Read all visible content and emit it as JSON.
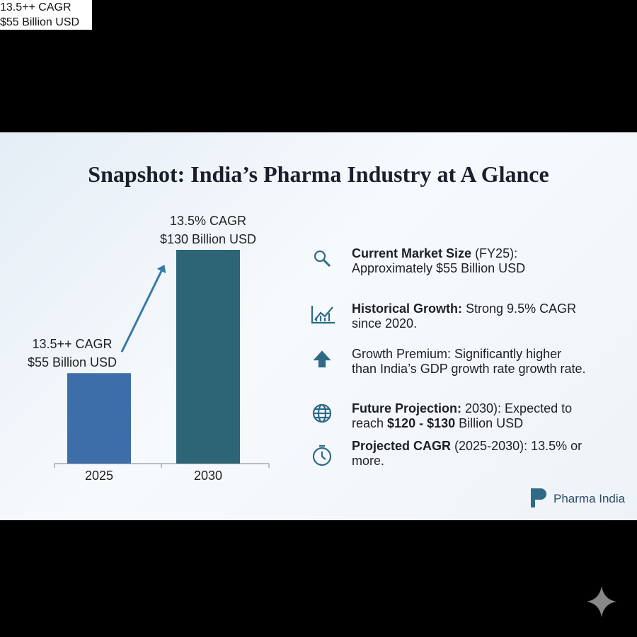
{
  "badge": {
    "lines": [
      "13.5++ CAGR",
      "$55 Billion USD"
    ]
  },
  "title": "Snapshot: India’s Pharma Industry at A Glance",
  "chart_data": {
    "type": "bar",
    "categories": [
      "2025",
      "2030"
    ],
    "values": [
      55,
      130
    ],
    "value_labels": [
      "$55 Billion USD",
      "$130 Billion USD"
    ],
    "annotations": [
      "13.5++ CAGR",
      "13.5% CAGR"
    ],
    "colors": [
      "#3d6ea8",
      "#2d6577"
    ]
  },
  "highlights": [
    {
      "segments": [
        {
          "text": "Current Market Size",
          "bold": true
        },
        {
          "text": " (FY25): Approximately $55 Billion USD",
          "bold": false
        }
      ]
    },
    {
      "segments": [
        {
          "text": "Historical Growth:",
          "bold": true
        },
        {
          "text": " Strong 9.5% CAGR since 2020.",
          "bold": false
        }
      ]
    },
    {
      "segments": [
        {
          "text": "Growth Premium: Significantly higher than India’s GDP growth rate growth rate.",
          "bold": false
        }
      ]
    },
    {
      "segments": [
        {
          "text": "Future Projection:",
          "bold": true
        },
        {
          "text": " 2030): Expected to reach ",
          "bold": false
        },
        {
          "text": "$120 - $130",
          "bold": true
        },
        {
          "text": " Billion USD",
          "bold": false
        }
      ]
    },
    {
      "segments": [
        {
          "text": "Projected CAGR",
          "bold": true
        },
        {
          "text": " (2025-2030): 13.5% or more.",
          "bold": false
        }
      ]
    }
  ],
  "logo": "Pharma India"
}
